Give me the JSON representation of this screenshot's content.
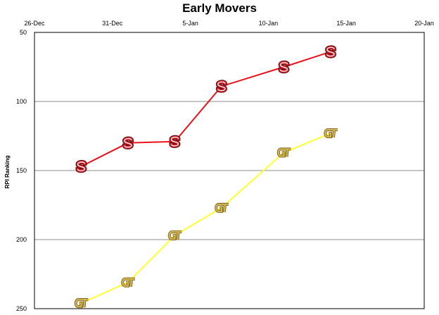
{
  "chart_data": {
    "type": "line",
    "title": "Early Movers",
    "xlabel": "",
    "ylabel": "RPI Ranking",
    "x_ticks": [
      "26-Dec",
      "31-Dec",
      "5-Jan",
      "10-Jan",
      "15-Jan",
      "20-Jan"
    ],
    "y_ticks": [
      "50",
      "100",
      "150",
      "200",
      "250"
    ],
    "xlim": [
      "2011-12-26",
      "2012-01-20"
    ],
    "ylim": [
      250,
      50
    ],
    "y_inverted": true,
    "grid": "horizontal",
    "series": [
      {
        "marker": "S",
        "color": "#e8131f",
        "x": [
          "2011-12-29",
          "2012-01-01",
          "2012-01-04",
          "2012-01-07",
          "2012-01-11",
          "2012-01-14"
        ],
        "y": [
          147,
          130,
          129,
          89,
          75,
          64
        ]
      },
      {
        "marker": "GT",
        "color": "#ffff33",
        "x": [
          "2011-12-29",
          "2012-01-01",
          "2012-01-04",
          "2012-01-07",
          "2012-01-11",
          "2012-01-14"
        ],
        "y": [
          246,
          231,
          197,
          177,
          137,
          123
        ]
      }
    ]
  }
}
